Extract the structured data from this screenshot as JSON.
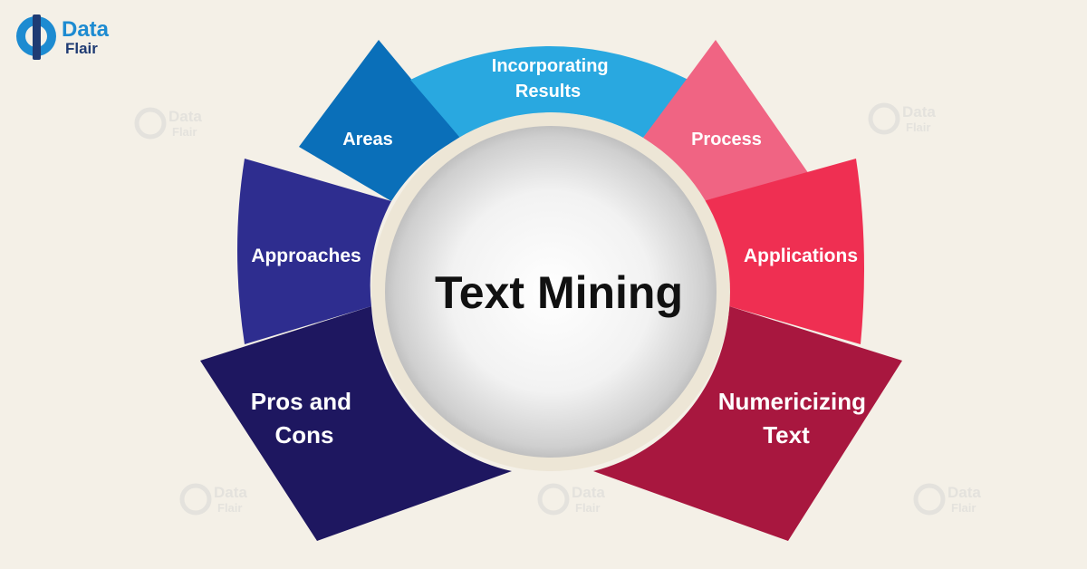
{
  "logo": {
    "line1": "Data",
    "line2": "Flair"
  },
  "center": {
    "title": "Text Mining"
  },
  "segments": [
    {
      "id": "incorporating-results",
      "lines": [
        "Incorporating",
        "Results"
      ],
      "color": "#29a8e0"
    },
    {
      "id": "process",
      "lines": [
        "Process"
      ],
      "color": "#f06483"
    },
    {
      "id": "applications",
      "lines": [
        "Applications"
      ],
      "color": "#ef2f52"
    },
    {
      "id": "numericizing-text",
      "lines": [
        "Numericizing",
        "Text"
      ],
      "color": "#a8173f"
    },
    {
      "id": "pros-and-cons",
      "lines": [
        "Pros and",
        "Cons"
      ],
      "color": "#1e1760"
    },
    {
      "id": "approaches",
      "lines": [
        "Approaches"
      ],
      "color": "#2e2d8f"
    },
    {
      "id": "areas",
      "lines": [
        "Areas"
      ],
      "color": "#0a6fb9"
    }
  ],
  "colors": {
    "background": "#f4f0e7",
    "logo_blue": "#1d8bd1",
    "logo_dark": "#1f3b73",
    "ring": "#ede6d6"
  }
}
